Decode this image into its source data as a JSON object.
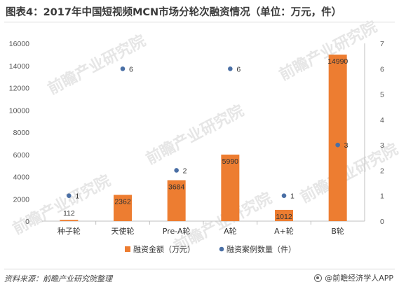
{
  "title": "图表4：2017年中国短视频MCN市场分轮次融资情况（单位：万元，件）",
  "watermark_text": "前瞻产业研究院",
  "source": "资料来源：前瞻产业研究院整理",
  "brand": "@前瞻经济学人APP",
  "colors": {
    "bar": "#ed7d31",
    "dot": "#4a6fa5",
    "axis": "#bfbfbf"
  },
  "chart_data": {
    "type": "bar",
    "categories": [
      "种子轮",
      "天使轮",
      "Pre-A轮",
      "A轮",
      "A+轮",
      "B轮"
    ],
    "series": [
      {
        "name": "融资金额（万元）",
        "type": "bar",
        "axis": "left",
        "values": [
          112,
          2362,
          3684,
          5990,
          1012,
          14990
        ]
      },
      {
        "name": "融资案例数量（件）",
        "type": "scatter",
        "axis": "right",
        "values": [
          1,
          6,
          2,
          6,
          1,
          3
        ]
      }
    ],
    "y_left": {
      "min": 0,
      "max": 16000,
      "ticks": [
        0,
        2000,
        4000,
        6000,
        8000,
        10000,
        12000,
        14000,
        16000
      ]
    },
    "y_right": {
      "min": 0,
      "max": 7,
      "ticks": [
        0,
        1,
        2,
        3,
        4,
        5,
        6,
        7
      ]
    },
    "legend_position": "bottom"
  }
}
